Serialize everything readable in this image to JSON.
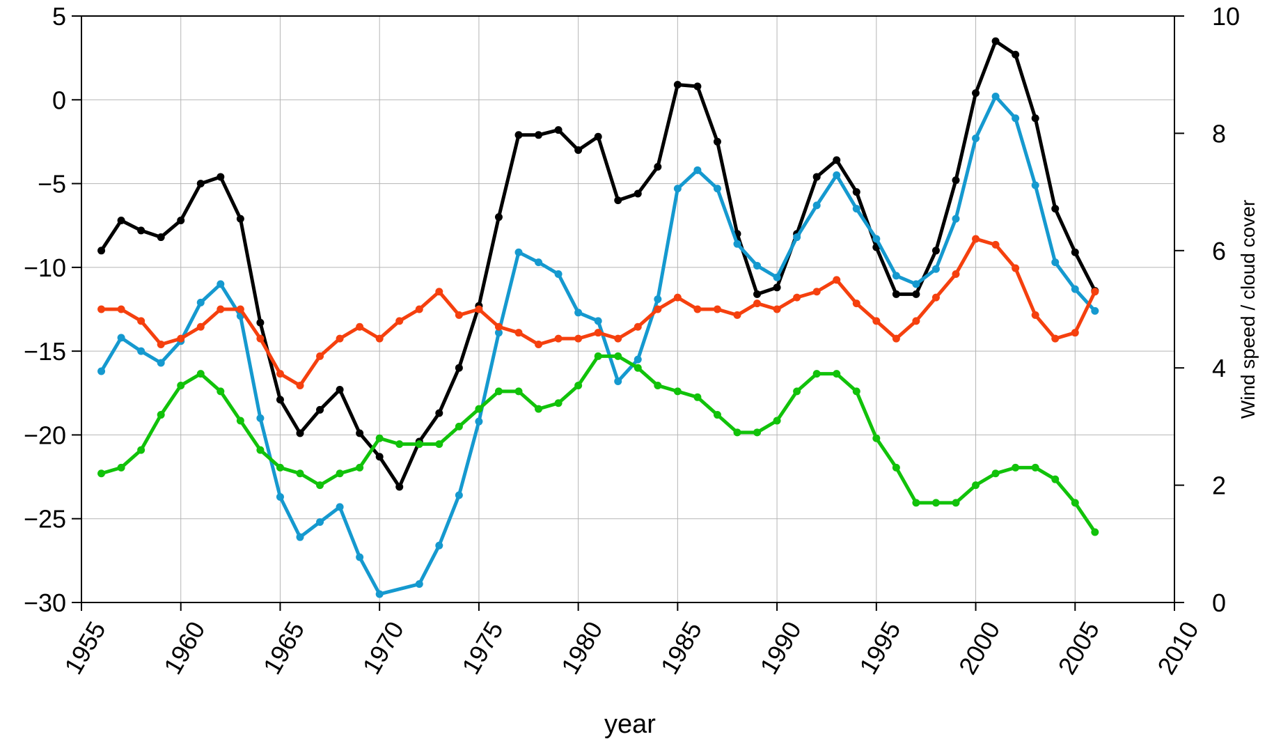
{
  "chart_data": {
    "type": "line",
    "xlabel": "year",
    "ylabel_left": "",
    "ylabel_right": "Wind speed  /  cloud cover",
    "xlim": [
      1955,
      2010
    ],
    "ylim_left": [
      -30,
      5
    ],
    "ylim_right": [
      0,
      10
    ],
    "x_ticks": [
      "1955",
      "1960",
      "1965",
      "1970",
      "1975",
      "1980",
      "1985",
      "1990",
      "1995",
      "2000",
      "2005",
      "2010"
    ],
    "y_left_ticks": [
      "5",
      "0",
      "−5",
      "−10",
      "−15",
      "−20",
      "−25",
      "−30"
    ],
    "y_right_ticks": [
      "10",
      "8",
      "6",
      "4",
      "2",
      "0"
    ],
    "grid": true,
    "series": [
      {
        "color": "#000000",
        "axis": "left",
        "x": [
          1956,
          1957,
          1958,
          1959,
          1960,
          1961,
          1962,
          1963,
          1964,
          1965,
          1966,
          1967,
          1968,
          1969,
          1970,
          1971,
          1972,
          1973,
          1974,
          1975,
          1976,
          1977,
          1978,
          1979,
          1980,
          1981,
          1982,
          1983,
          1984,
          1985,
          1986,
          1987,
          1988,
          1989,
          1990,
          1991,
          1992,
          1993,
          1994,
          1995,
          1996,
          1997,
          1998,
          1999,
          2000,
          2001,
          2002,
          2003,
          2004,
          2005,
          2006
        ],
        "values": [
          -9.0,
          -7.2,
          -7.8,
          -8.2,
          -7.2,
          -5.0,
          -4.6,
          -7.1,
          -13.3,
          -17.9,
          -19.9,
          -18.5,
          -17.3,
          -19.9,
          -21.3,
          -23.1,
          -20.4,
          -18.7,
          -16.0,
          -12.3,
          -7.0,
          -2.1,
          -2.1,
          -1.8,
          -3.0,
          -2.2,
          -6.0,
          -5.6,
          -4.0,
          0.9,
          0.8,
          -2.5,
          -8.0,
          -11.6,
          -11.2,
          -8.0,
          -4.6,
          -3.6,
          -5.5,
          -8.8,
          -11.6,
          -11.6,
          -9.0,
          -4.8,
          0.4,
          3.5,
          2.7,
          -1.1,
          -6.5,
          -9.1,
          -11.4
        ]
      },
      {
        "color": "#1599cf",
        "axis": "left",
        "x": [
          1956,
          1957,
          1958,
          1959,
          1960,
          1961,
          1962,
          1963,
          1964,
          1965,
          1966,
          1967,
          1968,
          1969,
          1970,
          1972,
          1973,
          1974,
          1975,
          1976,
          1977,
          1978,
          1979,
          1980,
          1981,
          1982,
          1983,
          1984,
          1985,
          1986,
          1987,
          1988,
          1989,
          1990,
          1991,
          1992,
          1993,
          1994,
          1995,
          1996,
          1997,
          1998,
          1999,
          2000,
          2001,
          2002,
          2003,
          2004,
          2005,
          2006
        ],
        "values": [
          -16.2,
          -14.2,
          -15.0,
          -15.7,
          -14.4,
          -12.1,
          -11.0,
          -12.9,
          -19.0,
          -23.7,
          -26.1,
          -25.2,
          -24.3,
          -27.3,
          -29.5,
          -28.9,
          -26.6,
          -23.6,
          -19.2,
          -13.9,
          -9.1,
          -9.7,
          -10.4,
          -12.7,
          -13.2,
          -16.8,
          -15.5,
          -11.9,
          -5.3,
          -4.2,
          -5.3,
          -8.6,
          -9.9,
          -10.6,
          -8.2,
          -6.3,
          -4.5,
          -6.5,
          -8.3,
          -10.5,
          -11.0,
          -10.1,
          -7.1,
          -2.3,
          0.2,
          -1.1,
          -5.1,
          -9.7,
          -11.3,
          -12.6
        ]
      },
      {
        "color": "#f5400e",
        "axis": "right",
        "x": [
          1956,
          1957,
          1958,
          1959,
          1960,
          1961,
          1962,
          1963,
          1964,
          1965,
          1966,
          1967,
          1968,
          1969,
          1970,
          1971,
          1972,
          1973,
          1974,
          1975,
          1976,
          1977,
          1978,
          1979,
          1980,
          1981,
          1982,
          1983,
          1984,
          1985,
          1986,
          1987,
          1988,
          1989,
          1990,
          1991,
          1992,
          1993,
          1994,
          1995,
          1996,
          1997,
          1998,
          1999,
          2000,
          2001,
          2002,
          2003,
          2004,
          2005,
          2006
        ],
        "values": [
          5.0,
          5.0,
          4.8,
          4.4,
          4.5,
          4.7,
          5.0,
          5.0,
          4.5,
          3.9,
          3.7,
          4.2,
          4.5,
          4.7,
          4.5,
          4.8,
          5.0,
          5.3,
          4.9,
          5.0,
          4.7,
          4.6,
          4.4,
          4.5,
          4.5,
          4.6,
          4.5,
          4.7,
          5.0,
          5.2,
          5.0,
          5.0,
          4.9,
          5.1,
          5.0,
          5.2,
          5.3,
          5.5,
          5.1,
          4.8,
          4.5,
          4.8,
          5.2,
          5.6,
          6.2,
          6.1,
          5.7,
          4.9,
          4.5,
          4.6,
          5.3
        ]
      },
      {
        "color": "#11c20a",
        "axis": "right",
        "x": [
          1956,
          1957,
          1958,
          1959,
          1960,
          1961,
          1962,
          1963,
          1964,
          1965,
          1966,
          1967,
          1968,
          1969,
          1970,
          1971,
          1972,
          1973,
          1974,
          1975,
          1976,
          1977,
          1978,
          1979,
          1980,
          1981,
          1982,
          1983,
          1984,
          1985,
          1986,
          1987,
          1988,
          1989,
          1990,
          1991,
          1992,
          1993,
          1994,
          1995,
          1996,
          1997,
          1998,
          1999,
          2000,
          2001,
          2002,
          2003,
          2004,
          2005,
          2006
        ],
        "values": [
          2.2,
          2.3,
          2.6,
          3.2,
          3.7,
          3.9,
          3.6,
          3.1,
          2.6,
          2.3,
          2.2,
          2.0,
          2.2,
          2.3,
          2.8,
          2.7,
          2.7,
          2.7,
          3.0,
          3.3,
          3.6,
          3.6,
          3.3,
          3.4,
          3.7,
          4.2,
          4.2,
          4.0,
          3.7,
          3.6,
          3.5,
          3.2,
          2.9,
          2.9,
          3.1,
          3.6,
          3.9,
          3.9,
          3.6,
          2.8,
          2.3,
          1.7,
          1.7,
          1.7,
          2.0,
          2.2,
          2.3,
          2.3,
          2.1,
          1.7,
          1.2
        ]
      }
    ]
  }
}
